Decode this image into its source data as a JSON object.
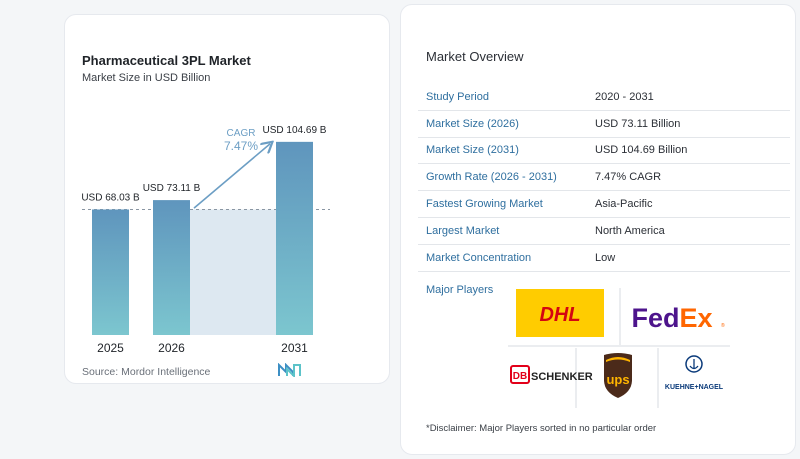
{
  "chart": {
    "title": "Pharmaceutical 3PL Market",
    "subtitle": "Market Size in USD Billion",
    "source": "Source:  Mordor Intelligence",
    "cagr_label": "CAGR",
    "cagr_value": "7.47%"
  },
  "chart_data": {
    "type": "bar",
    "title": "Pharmaceutical 3PL Market",
    "subtitle": "Market Size in USD Billion",
    "categories": [
      "2025",
      "2026",
      "2031"
    ],
    "values": [
      68.03,
      73.11,
      104.69
    ],
    "data_labels": [
      "USD 68.03 B",
      "USD 73.11 B",
      "USD 104.69 B"
    ],
    "ylim": [
      0,
      110
    ],
    "grid": false,
    "annotation": {
      "text": "CAGR 7.47%",
      "from": "2026",
      "to": "2031"
    },
    "colors": {
      "bar_top": "#5f95bd",
      "bar_bottom": "#7cc6cf",
      "highlight": "#dde8f1",
      "arrow": "#6c9ec4",
      "dash": "#8a96a3"
    }
  },
  "overview": {
    "title": "Market Overview",
    "rows": [
      {
        "label": "Study Period",
        "value": "2020 - 2031"
      },
      {
        "label": "Market Size (2026)",
        "value": "USD 73.11 Billion"
      },
      {
        "label": "Market Size (2031)",
        "value": "USD 104.69 Billion"
      },
      {
        "label": "Growth Rate (2026 - 2031)",
        "value": "7.47% CAGR"
      },
      {
        "label": "Fastest Growing Market",
        "value": "Asia-Pacific"
      },
      {
        "label": "Largest Market",
        "value": "North America"
      },
      {
        "label": "Market Concentration",
        "value": "Low"
      }
    ],
    "major_players_label": "Major Players",
    "players": [
      {
        "name": "DHL",
        "logo": "dhl-logo"
      },
      {
        "name": "FedEx",
        "logo": "fedex-logo"
      },
      {
        "name": "SCHENKER",
        "logo": "db-schenker-logo"
      },
      {
        "name": "UPS",
        "logo": "ups-logo"
      },
      {
        "name": "KUEHNE+NAGEL",
        "logo": "kuehne-nagel-logo"
      }
    ],
    "disclaimer": "*Disclaimer: Major Players sorted in no particular order"
  }
}
